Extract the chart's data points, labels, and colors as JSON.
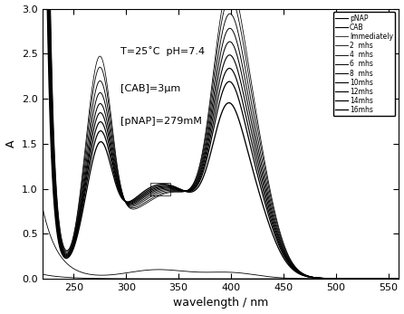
{
  "title": "",
  "xlabel": "wavelength / nm",
  "ylabel": "A",
  "xlim": [
    220,
    560
  ],
  "ylim": [
    0,
    3.0
  ],
  "xticks": [
    250,
    300,
    350,
    400,
    450,
    500,
    550
  ],
  "yticks": [
    0.0,
    0.5,
    1.0,
    1.5,
    2.0,
    2.5,
    3.0
  ],
  "annotation_line1": "T=25˚C  pH=7.4",
  "annotation_line2": "[CAB]=3μm",
  "annotation_line3": "[pNAP]=279mM",
  "legend_labels": [
    "pNAP",
    "CAB",
    "Immediately",
    "2  mhs",
    "4  mhs",
    "6  mhs",
    "8  mhs",
    "10mhs",
    "12mhs",
    "14mhs",
    "16mhs"
  ],
  "background_color": "#ffffff",
  "font_size": 9
}
